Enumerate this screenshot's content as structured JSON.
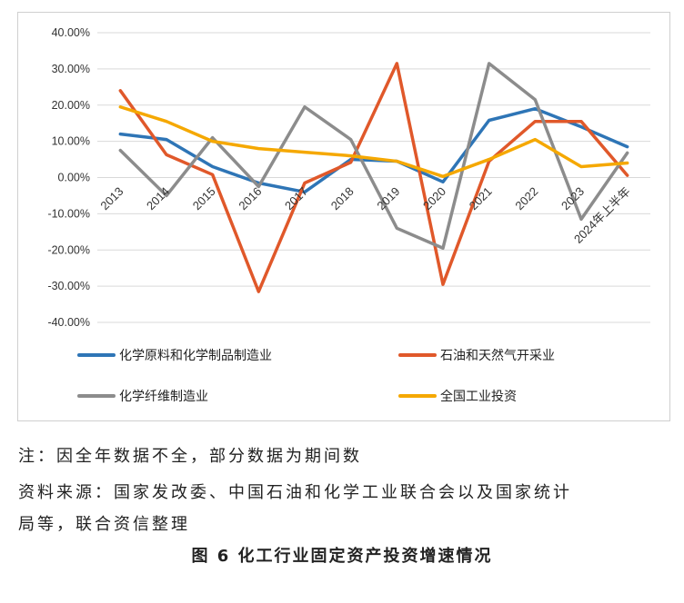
{
  "chart_data": {
    "type": "line",
    "categories": [
      "2013",
      "2014",
      "2015",
      "2016",
      "2017",
      "2018",
      "2019",
      "2020",
      "2021",
      "2022",
      "2023",
      "2024年上半年"
    ],
    "ylim": [
      -40,
      40
    ],
    "ytick_values": [
      -40,
      -30,
      -20,
      -10,
      0,
      10,
      20,
      30,
      40
    ],
    "ytick_labels": [
      "-40.00%",
      "-30.00%",
      "-20.00%",
      "-10.00%",
      "0.00%",
      "10.00%",
      "20.00%",
      "30.00%",
      "40.00%"
    ],
    "grid": true,
    "legend_position": "bottom",
    "series": [
      {
        "name": "化学原料和化学制品制造业",
        "color": "#2E75B6",
        "values": [
          12.0,
          10.5,
          3.0,
          -1.5,
          -4.0,
          5.0,
          4.5,
          -1.2,
          15.8,
          19.0,
          14.0,
          8.5
        ]
      },
      {
        "name": "石油和天然气开采业",
        "color": "#E0582A",
        "values": [
          24.0,
          6.3,
          0.8,
          -31.5,
          -1.5,
          4.2,
          31.5,
          -29.5,
          4.5,
          15.5,
          15.5,
          0.6
        ]
      },
      {
        "name": "化学纤维制造业",
        "color": "#8C8C8C",
        "values": [
          7.5,
          -5.0,
          11.0,
          -2.5,
          19.5,
          10.5,
          -14.0,
          -19.5,
          31.5,
          21.5,
          -11.5,
          6.8
        ]
      },
      {
        "name": "全国工业投资",
        "color": "#F5A800",
        "values": [
          19.5,
          15.5,
          10.0,
          8.0,
          7.0,
          6.0,
          4.5,
          0.3,
          5.0,
          10.5,
          3.0,
          4.0
        ]
      }
    ]
  },
  "notes": {
    "line1": "注：因全年数据不全，部分数据为期间数",
    "line2": "资料来源：国家发改委、中国石油和化学工业联合会以及国家统计",
    "line3": "局等，联合资信整理"
  },
  "caption": "图 6  化工行业固定资产投资增速情况"
}
